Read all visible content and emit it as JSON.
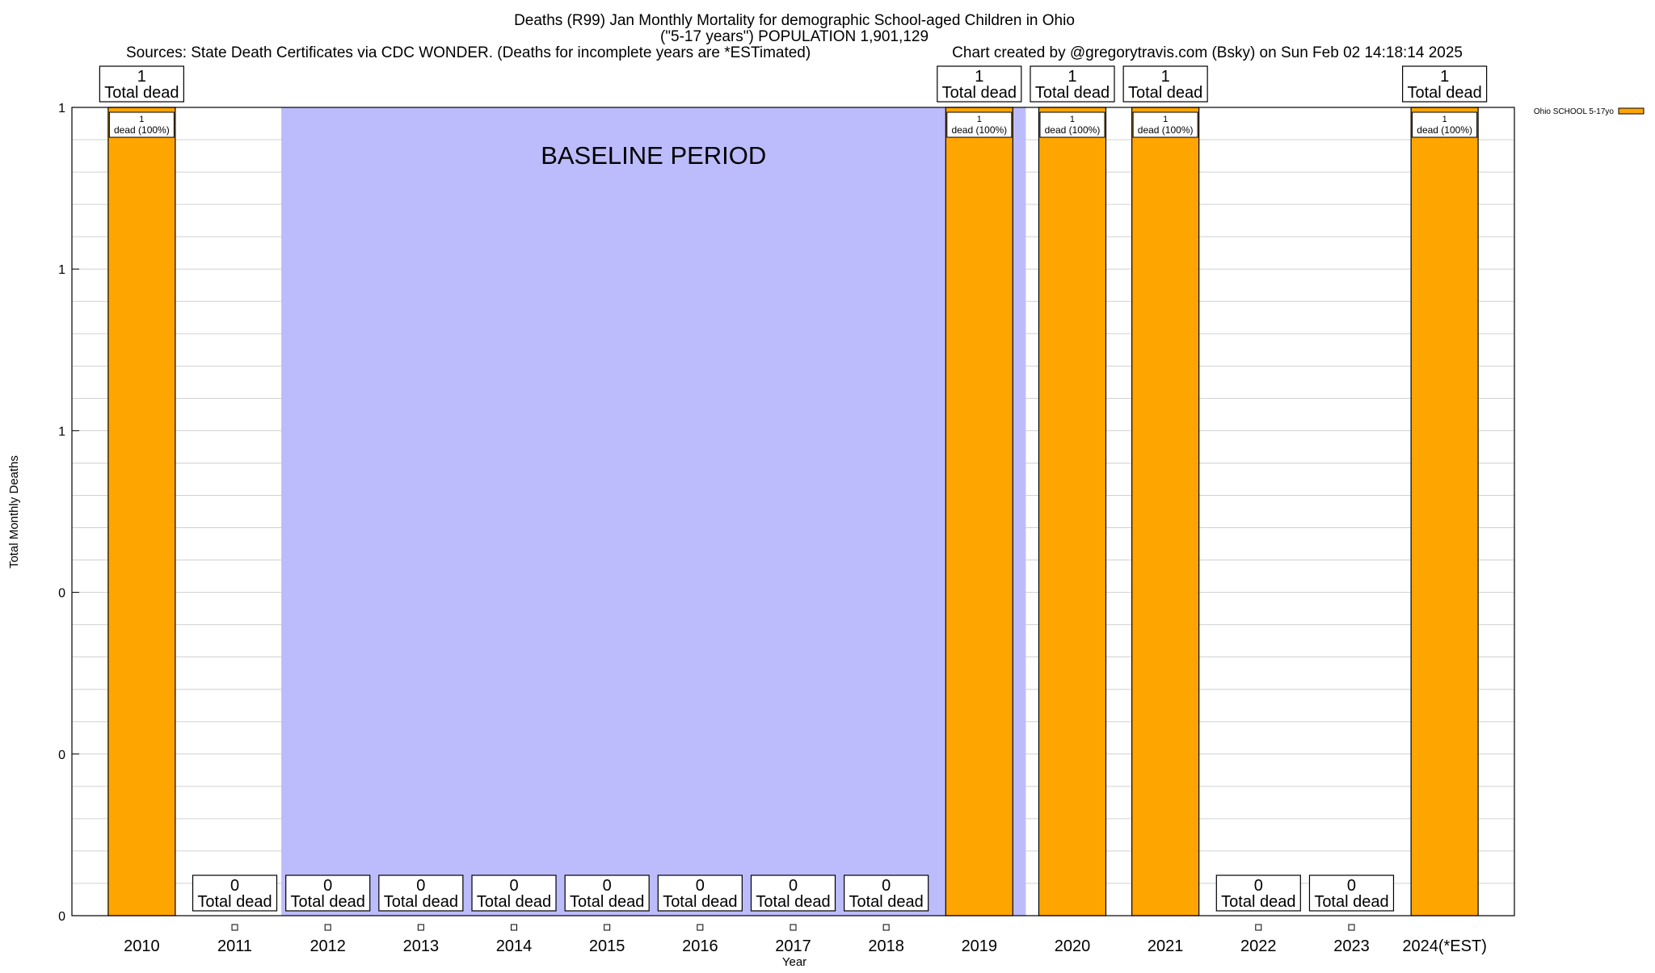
{
  "chart_data": {
    "type": "bar",
    "title_lines": [
      "Deaths (R99) Jan Monthly Mortality for demographic School-aged Children in Ohio",
      "(\"5-17 years\") POPULATION 1,901,129"
    ],
    "sources": "Sources: State Death Certificates via CDC WONDER. (Deaths for incomplete years are *ESTimated)",
    "credit": "Chart created by @gregorytravis.com (Bsky) on Sun Feb 02 14:18:14 2025",
    "xlabel": "Year",
    "ylabel": "Total Monthly Deaths",
    "ylim": [
      0,
      1
    ],
    "y_ticks": [
      0,
      0.2,
      0.4,
      0.6,
      0.8,
      1.0
    ],
    "y_tick_labels": [
      "0",
      "0",
      "0",
      "1",
      "1",
      "1"
    ],
    "y_minor_step": 0.04,
    "categories": [
      "2010",
      "2011",
      "2012",
      "2013",
      "2014",
      "2015",
      "2016",
      "2017",
      "2018",
      "2019",
      "2020",
      "2021",
      "2022",
      "2023",
      "2024(*EST)"
    ],
    "series": [
      {
        "name": "Ohio SCHOOL 5-17yo",
        "color": "#ffa500",
        "values": [
          1,
          0,
          0,
          0,
          0,
          0,
          0,
          0,
          0,
          1,
          1,
          1,
          0,
          0,
          1
        ]
      }
    ],
    "total_label_suffix": "Total dead",
    "pct_label": "dead (100%)",
    "baseline": {
      "label": "BASELINE PERIOD",
      "from_category": 1.5,
      "to_category": 9.5,
      "color": "#bcbcfc"
    },
    "legend": {
      "position": "top-right"
    }
  }
}
